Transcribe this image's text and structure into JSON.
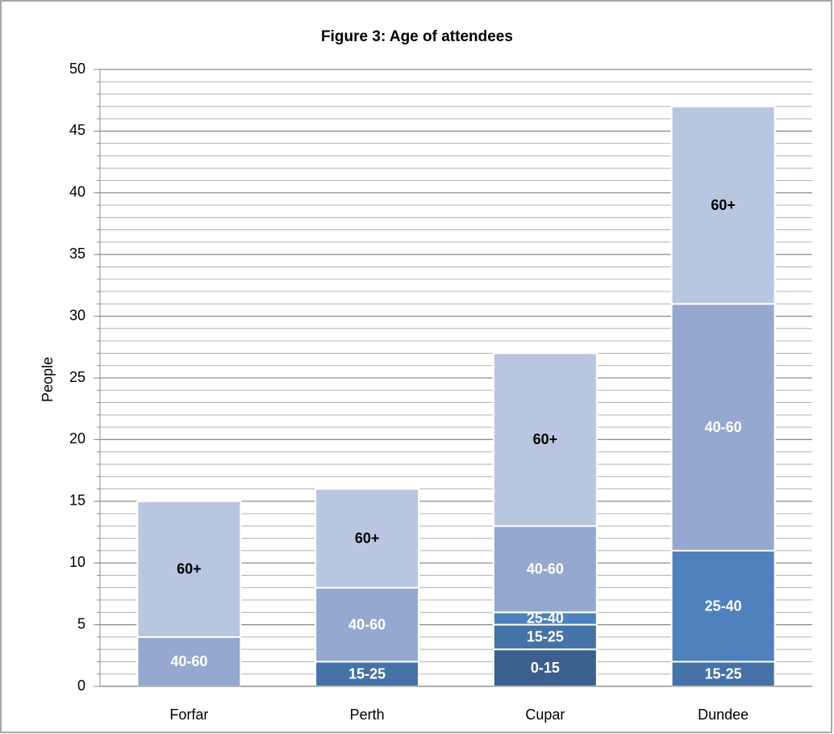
{
  "chart_data": {
    "type": "stacked_bar",
    "title": "Figure 3: Age of attendees",
    "y_label": "People",
    "categories": [
      "Forfar",
      "Perth",
      "Cupar",
      "Dundee"
    ],
    "series": [
      {
        "name": "0-15",
        "color": "#3b5f8f",
        "label_color": "#ffffff",
        "values": [
          0,
          0,
          3,
          0
        ]
      },
      {
        "name": "15-25",
        "color": "#4572a7",
        "label_color": "#ffffff",
        "values": [
          0,
          2,
          2,
          2
        ]
      },
      {
        "name": "25-40",
        "color": "#4f81bd",
        "label_color": "#ffffff",
        "values": [
          0,
          0,
          1,
          9
        ]
      },
      {
        "name": "40-60",
        "color": "#95a9d0",
        "label_color": "#ffffff",
        "values": [
          4,
          6,
          7,
          20
        ]
      },
      {
        "name": "60+",
        "color": "#b9c6e0",
        "label_color": "#000000",
        "values": [
          11,
          8,
          14,
          16
        ]
      }
    ],
    "ylim": [
      0,
      50
    ],
    "yticks": [
      0,
      5,
      10,
      15,
      20,
      25,
      30,
      35,
      40,
      45,
      50
    ],
    "yminor_step": 1,
    "grid": true
  }
}
